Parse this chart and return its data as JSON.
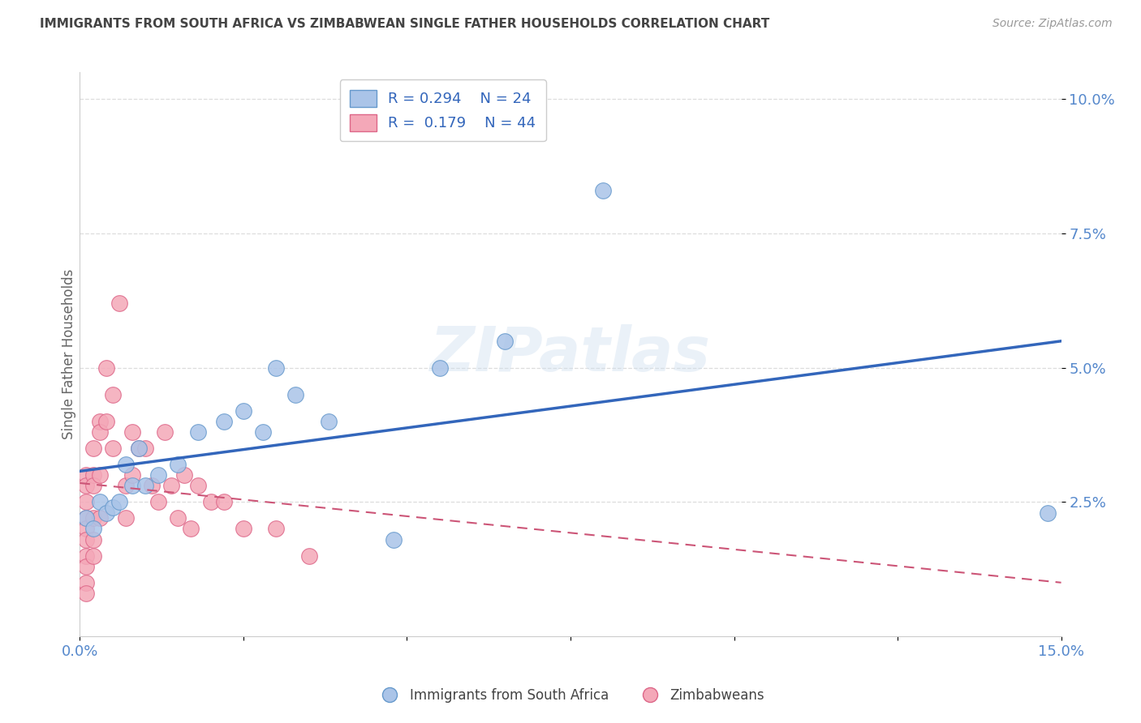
{
  "title": "IMMIGRANTS FROM SOUTH AFRICA VS ZIMBABWEAN SINGLE FATHER HOUSEHOLDS CORRELATION CHART",
  "source": "Source: ZipAtlas.com",
  "ylabel": "Single Father Households",
  "xlim": [
    0.0,
    0.15
  ],
  "ylim": [
    0.0,
    0.105
  ],
  "yticks": [
    0.025,
    0.05,
    0.075,
    0.1
  ],
  "ytick_labels": [
    "2.5%",
    "5.0%",
    "7.5%",
    "10.0%"
  ],
  "xticks": [
    0.0,
    0.025,
    0.05,
    0.075,
    0.1,
    0.125,
    0.15
  ],
  "xtick_labels": [
    "0.0%",
    "",
    "",
    "",
    "",
    "",
    "15.0%"
  ],
  "blue_R": "0.294",
  "blue_N": "24",
  "pink_R": "0.179",
  "pink_N": "44",
  "blue_label": "Immigrants from South Africa",
  "pink_label": "Zimbabweans",
  "blue_color": "#aac4e8",
  "pink_color": "#f4a8b8",
  "blue_edge": "#6699cc",
  "pink_edge": "#dd6688",
  "blue_line_color": "#3366bb",
  "pink_line_color": "#cc5577",
  "background_color": "#ffffff",
  "grid_color": "#dddddd",
  "title_color": "#444444",
  "watermark": "ZIPatlas",
  "blue_x": [
    0.001,
    0.002,
    0.003,
    0.004,
    0.005,
    0.006,
    0.007,
    0.008,
    0.009,
    0.01,
    0.012,
    0.015,
    0.018,
    0.022,
    0.025,
    0.028,
    0.03,
    0.033,
    0.038,
    0.048,
    0.055,
    0.065,
    0.08,
    0.148
  ],
  "blue_y": [
    0.022,
    0.02,
    0.025,
    0.023,
    0.024,
    0.025,
    0.032,
    0.028,
    0.035,
    0.028,
    0.03,
    0.032,
    0.038,
    0.04,
    0.042,
    0.038,
    0.05,
    0.045,
    0.04,
    0.018,
    0.05,
    0.055,
    0.083,
    0.023
  ],
  "pink_x": [
    0.001,
    0.001,
    0.001,
    0.001,
    0.001,
    0.001,
    0.001,
    0.001,
    0.001,
    0.001,
    0.002,
    0.002,
    0.002,
    0.002,
    0.002,
    0.002,
    0.003,
    0.003,
    0.003,
    0.003,
    0.004,
    0.004,
    0.005,
    0.005,
    0.006,
    0.007,
    0.007,
    0.008,
    0.008,
    0.009,
    0.01,
    0.011,
    0.012,
    0.013,
    0.014,
    0.015,
    0.016,
    0.017,
    0.018,
    0.02,
    0.022,
    0.025,
    0.03,
    0.035
  ],
  "pink_y": [
    0.03,
    0.028,
    0.025,
    0.022,
    0.02,
    0.018,
    0.015,
    0.013,
    0.01,
    0.008,
    0.035,
    0.03,
    0.028,
    0.022,
    0.018,
    0.015,
    0.04,
    0.038,
    0.03,
    0.022,
    0.05,
    0.04,
    0.045,
    0.035,
    0.062,
    0.028,
    0.022,
    0.038,
    0.03,
    0.035,
    0.035,
    0.028,
    0.025,
    0.038,
    0.028,
    0.022,
    0.03,
    0.02,
    0.028,
    0.025,
    0.025,
    0.02,
    0.02,
    0.015
  ]
}
